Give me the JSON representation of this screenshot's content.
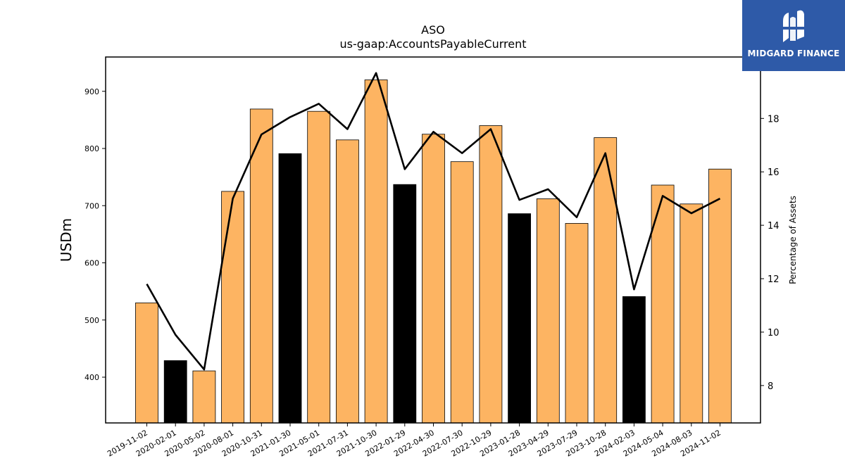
{
  "title": "ASO",
  "subtitle": "us-gaap:AccountsPayableCurrent",
  "logo": {
    "text": "MIDGARD FINANCE",
    "bg_color": "#2e5aa8",
    "icon": "midgard-logo-icon"
  },
  "chart_data": {
    "type": "bar",
    "categories": [
      "2019-11-02",
      "2020-02-01",
      "2020-05-02",
      "2020-08-01",
      "2020-10-31",
      "2021-01-30",
      "2021-05-01",
      "2021-07-31",
      "2021-10-30",
      "2022-01-29",
      "2022-04-30",
      "2022-07-30",
      "2022-10-29",
      "2023-01-28",
      "2023-04-29",
      "2023-07-29",
      "2023-10-28",
      "2024-02-03",
      "2024-05-04",
      "2024-08-03",
      "2024-11-02"
    ],
    "series": [
      {
        "type": "bar",
        "axis": "left",
        "values": [
          530,
          429,
          411,
          725,
          869,
          791,
          865,
          815,
          920,
          737,
          825,
          777,
          840,
          686,
          712,
          669,
          819,
          541,
          736,
          703,
          764
        ],
        "colors": [
          "#fdb462",
          "#000000",
          "#fdb462",
          "#fdb462",
          "#fdb462",
          "#000000",
          "#fdb462",
          "#fdb462",
          "#fdb462",
          "#000000",
          "#fdb462",
          "#fdb462",
          "#fdb462",
          "#000000",
          "#fdb462",
          "#fdb462",
          "#fdb462",
          "#000000",
          "#fdb462",
          "#fdb462",
          "#fdb462"
        ]
      },
      {
        "type": "line",
        "axis": "right",
        "color": "#000000",
        "values": [
          11.8,
          9.9,
          8.6,
          15.0,
          17.4,
          18.05,
          18.55,
          17.6,
          19.7,
          16.1,
          17.5,
          16.7,
          17.6,
          14.95,
          15.35,
          14.3,
          16.7,
          11.6,
          15.1,
          14.45,
          15.0
        ]
      }
    ],
    "ylabel": "USDm",
    "ylabel_right": "Percentage of Assets",
    "ylim": [
      320,
      960
    ],
    "yticks": [
      400,
      500,
      600,
      700,
      800,
      900
    ],
    "ylim_right": [
      6.6,
      20.3
    ],
    "yticks_right": [
      8,
      10,
      12,
      14,
      16,
      18
    ],
    "grid": false,
    "legend": "none"
  }
}
